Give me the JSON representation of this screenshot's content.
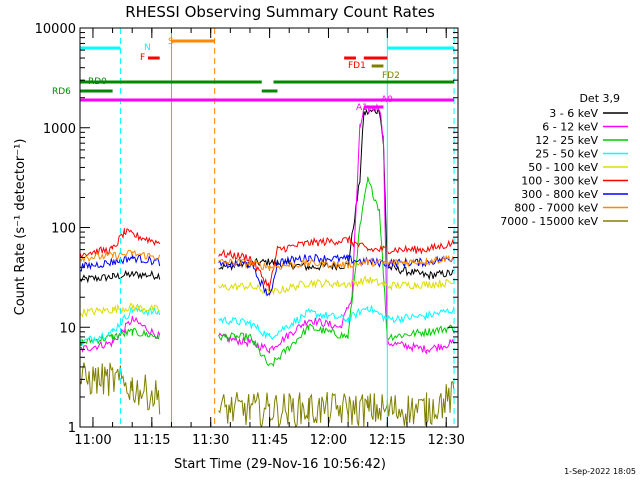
{
  "chart_data": {
    "type": "line",
    "title": "RHESSI Observing Summary Count Rates",
    "xlabel": "Start Time (29-Nov-16 10:56:42)",
    "ylabel": "Count Rate (s⁻¹ detector⁻¹)",
    "x_start": "10:56:42",
    "xlim": [
      "10:56:42",
      "12:33:00"
    ],
    "ylim": [
      1,
      10000
    ],
    "yscale": "log",
    "x_ticks": [
      "11:00",
      "11:15",
      "11:30",
      "11:45",
      "12:00",
      "12:15",
      "12:30"
    ],
    "y_ticks": [
      "1",
      "10",
      "100",
      "1000",
      "10000"
    ],
    "detector_label": "Det 3,9",
    "legend_position": "right",
    "series": [
      {
        "name": "3 - 6 keV",
        "color": "#000000",
        "points": [
          [
            "10:56:42",
            30
          ],
          [
            "11:05",
            32
          ],
          [
            "11:10",
            34
          ],
          [
            "11:17",
            33
          ],
          [
            "11:18",
            0
          ],
          [
            "11:31",
            0
          ],
          [
            "11:32",
            40
          ],
          [
            "11:40",
            44
          ],
          [
            "11:45",
            45
          ],
          [
            "11:55",
            40
          ],
          [
            "12:05",
            42
          ],
          [
            "12:08",
            300
          ],
          [
            "12:09",
            1400
          ],
          [
            "12:13",
            1500
          ],
          [
            "12:14",
            700
          ],
          [
            "12:15",
            40
          ],
          [
            "12:25",
            33
          ],
          [
            "12:32",
            35
          ]
        ]
      },
      {
        "name": "6 - 12 keV",
        "color": "#ff00ff",
        "points": [
          [
            "10:56:42",
            6
          ],
          [
            "11:05",
            7
          ],
          [
            "11:10",
            12
          ],
          [
            "11:17",
            8
          ],
          [
            "11:18",
            0
          ],
          [
            "11:31",
            0
          ],
          [
            "11:32",
            8
          ],
          [
            "11:40",
            7
          ],
          [
            "11:45",
            6
          ],
          [
            "11:55",
            12
          ],
          [
            "12:03",
            10
          ],
          [
            "12:06",
            20
          ],
          [
            "12:08",
            1000
          ],
          [
            "12:09",
            1500
          ],
          [
            "12:13",
            1600
          ],
          [
            "12:14",
            800
          ],
          [
            "12:15",
            7
          ],
          [
            "12:25",
            6
          ],
          [
            "12:32",
            7
          ]
        ]
      },
      {
        "name": "12 - 25 keV",
        "color": "#00cc00",
        "points": [
          [
            "10:56:42",
            7
          ],
          [
            "11:05",
            8
          ],
          [
            "11:10",
            9
          ],
          [
            "11:17",
            8
          ],
          [
            "11:18",
            0
          ],
          [
            "11:31",
            0
          ],
          [
            "11:32",
            8
          ],
          [
            "11:40",
            8
          ],
          [
            "11:45",
            4
          ],
          [
            "11:55",
            10
          ],
          [
            "12:05",
            8
          ],
          [
            "12:08",
            100
          ],
          [
            "12:10",
            300
          ],
          [
            "12:13",
            150
          ],
          [
            "12:15",
            8
          ],
          [
            "12:25",
            9
          ],
          [
            "12:32",
            10
          ]
        ]
      },
      {
        "name": "25 - 50 keV",
        "color": "#00ffff",
        "points": [
          [
            "10:56:42",
            7
          ],
          [
            "11:05",
            9
          ],
          [
            "11:10",
            15
          ],
          [
            "11:17",
            14
          ],
          [
            "11:18",
            0
          ],
          [
            "11:31",
            0
          ],
          [
            "11:32",
            12
          ],
          [
            "11:40",
            11
          ],
          [
            "11:45",
            8
          ],
          [
            "11:55",
            14
          ],
          [
            "12:05",
            12
          ],
          [
            "12:10",
            16
          ],
          [
            "12:15",
            12
          ],
          [
            "12:25",
            13
          ],
          [
            "12:32",
            15
          ]
        ]
      },
      {
        "name": "50 - 100 keV",
        "color": "#dddd00",
        "points": [
          [
            "10:56:42",
            14
          ],
          [
            "11:05",
            15
          ],
          [
            "11:10",
            16
          ],
          [
            "11:17",
            15
          ],
          [
            "11:18",
            0
          ],
          [
            "11:31",
            0
          ],
          [
            "11:32",
            25
          ],
          [
            "11:40",
            26
          ],
          [
            "11:45",
            22
          ],
          [
            "11:55",
            28
          ],
          [
            "12:05",
            27
          ],
          [
            "12:10",
            30
          ],
          [
            "12:15",
            26
          ],
          [
            "12:25",
            27
          ],
          [
            "12:32",
            28
          ]
        ]
      },
      {
        "name": "100 - 300 keV",
        "color": "#ff0000",
        "points": [
          [
            "10:56:42",
            55
          ],
          [
            "11:05",
            60
          ],
          [
            "11:08",
            90
          ],
          [
            "11:17",
            70
          ],
          [
            "11:18",
            0
          ],
          [
            "11:31",
            0
          ],
          [
            "11:32",
            55
          ],
          [
            "11:40",
            50
          ],
          [
            "11:45",
            25
          ],
          [
            "11:47",
            60
          ],
          [
            "11:55",
            70
          ],
          [
            "12:05",
            75
          ],
          [
            "12:10",
            60
          ],
          [
            "12:15",
            60
          ],
          [
            "12:25",
            60
          ],
          [
            "12:32",
            70
          ]
        ]
      },
      {
        "name": "300 - 800 keV",
        "color": "#0000ff",
        "points": [
          [
            "10:56:42",
            40
          ],
          [
            "11:05",
            45
          ],
          [
            "11:10",
            50
          ],
          [
            "11:17",
            45
          ],
          [
            "11:18",
            0
          ],
          [
            "11:31",
            0
          ],
          [
            "11:32",
            42
          ],
          [
            "11:40",
            43
          ],
          [
            "11:45",
            20
          ],
          [
            "11:47",
            45
          ],
          [
            "11:55",
            50
          ],
          [
            "12:05",
            48
          ],
          [
            "12:10",
            45
          ],
          [
            "12:15",
            44
          ],
          [
            "12:25",
            45
          ],
          [
            "12:32",
            50
          ]
        ]
      },
      {
        "name": "800 - 7000 keV",
        "color": "#ff8800",
        "points": [
          [
            "10:56:42",
            50
          ],
          [
            "11:05",
            52
          ],
          [
            "11:10",
            55
          ],
          [
            "11:17",
            50
          ],
          [
            "11:18",
            0
          ],
          [
            "11:31",
            0
          ],
          [
            "11:32",
            45
          ],
          [
            "11:40",
            44
          ],
          [
            "11:45",
            40
          ],
          [
            "11:55",
            44
          ],
          [
            "12:05",
            42
          ],
          [
            "12:10",
            45
          ],
          [
            "12:15",
            44
          ],
          [
            "12:25",
            46
          ],
          [
            "12:32",
            50
          ]
        ]
      },
      {
        "name": "7000 - 15000 keV",
        "color": "#808000",
        "points": [
          [
            "10:56:42",
            3
          ],
          [
            "11:05",
            3
          ],
          [
            "11:10",
            2.5
          ],
          [
            "11:17",
            2
          ],
          [
            "11:18",
            0
          ],
          [
            "11:31",
            0
          ],
          [
            "11:32",
            1.5
          ],
          [
            "11:40",
            1.5
          ],
          [
            "11:45",
            1.5
          ],
          [
            "11:55",
            1.5
          ],
          [
            "12:05",
            1.5
          ],
          [
            "12:10",
            1.5
          ],
          [
            "12:15",
            1.5
          ],
          [
            "12:25",
            1.5
          ],
          [
            "12:32",
            2
          ]
        ]
      }
    ],
    "annotations": {
      "bars": [
        {
          "label": "N",
          "color": "#00ffff",
          "segments": [
            [
              "10:56:42",
              "11:07"
            ],
            [
              "12:15",
              "12:32"
            ]
          ]
        },
        {
          "label": "S",
          "color": "#ff8800",
          "segments": [
            [
              "11:20",
              "11:31"
            ]
          ]
        },
        {
          "label": "F",
          "color": "#ff0000",
          "segments": [
            [
              "11:14",
              "11:17"
            ]
          ]
        },
        {
          "label": "FD1",
          "color": "#ff0000",
          "segments": [
            [
              "12:04",
              "12:07"
            ],
            [
              "12:09",
              "12:15"
            ]
          ]
        },
        {
          "label": "FD2",
          "color": "#808000",
          "segments": [
            [
              "12:11",
              "12:14"
            ]
          ]
        },
        {
          "label": "RD0",
          "color": "#008800",
          "segments": [
            [
              "10:56:42",
              "11:43"
            ],
            [
              "11:46",
              "12:32"
            ]
          ]
        },
        {
          "label": "RD6",
          "color": "#008800",
          "segments": [
            [
              "10:56:42",
              "11:05"
            ],
            [
              "11:43",
              "11:47"
            ]
          ]
        },
        {
          "label": "A1",
          "color": "#ff00ff",
          "segments": [
            [
              "10:56:42",
              "12:32"
            ]
          ]
        },
        {
          "label": "A0",
          "color": "#ff00ff",
          "segments": [
            [
              "12:09",
              "12:14"
            ]
          ]
        }
      ],
      "vertical_lines": [
        {
          "time": "10:56:42",
          "color": "#00ffff",
          "style": "solid"
        },
        {
          "time": "11:07",
          "color": "#00ffff",
          "style": "dashed"
        },
        {
          "time": "11:20",
          "color": "#ff8800",
          "style": "solid"
        },
        {
          "time": "11:31",
          "color": "#ff8800",
          "style": "dashed"
        },
        {
          "time": "12:15",
          "color": "#00ffff",
          "style": "solid"
        },
        {
          "time": "12:32",
          "color": "#00ffff",
          "style": "dashed"
        }
      ]
    }
  },
  "footer": {
    "date": "1-Sep-2022 18:05"
  }
}
